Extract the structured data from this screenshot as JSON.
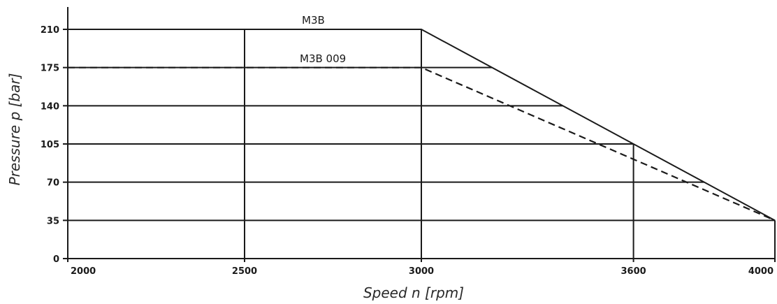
{
  "chart_data": {
    "type": "line",
    "xlabel": "Speed n [rpm]",
    "ylabel": "Pressure p [bar]",
    "x_ticks": [
      2000,
      2500,
      3000,
      3600,
      4000
    ],
    "y_ticks": [
      0,
      35,
      70,
      105,
      140,
      175,
      210
    ],
    "xlim": [
      2000,
      4000
    ],
    "ylim": [
      0,
      210
    ],
    "grid": "partial",
    "series": [
      {
        "name": "M3B",
        "style": "solid",
        "x": [
          2000,
          3000,
          4000
        ],
        "y": [
          210,
          210,
          35
        ]
      },
      {
        "name": "M3B 009",
        "style": "dashed",
        "x": [
          2000,
          3000,
          4000
        ],
        "y": [
          175,
          175,
          35
        ]
      }
    ],
    "colors": {
      "axis": "#1a1a1a",
      "line": "#1a1a1a"
    }
  }
}
